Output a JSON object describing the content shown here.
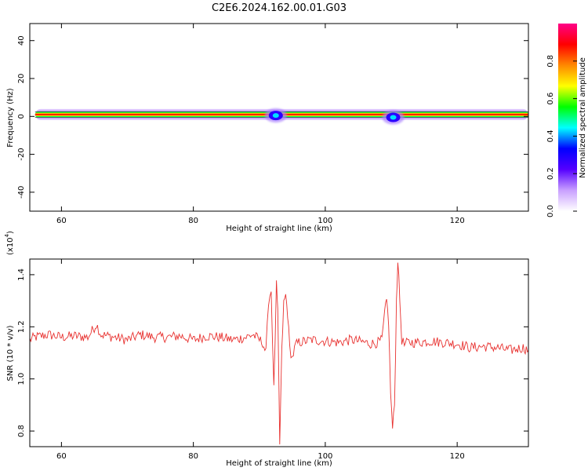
{
  "title": "C2E6.2024.162.00.01.G03",
  "chart_data": [
    {
      "type": "heatmap",
      "xlabel": "Height of straight line (km)",
      "ylabel": "Frequency (Hz)",
      "xlim": [
        55.2,
        130.8
      ],
      "ylim": [
        -50,
        49
      ],
      "x_ticks": [
        "60",
        "80",
        "100",
        "120"
      ],
      "y_ticks": [
        "40",
        "20",
        "0",
        "-20",
        "-40"
      ],
      "x_tick_values": [
        60,
        80,
        100,
        120
      ],
      "y_tick_values": [
        40,
        20,
        0,
        -20,
        -40
      ],
      "band_range_km": [
        56,
        130.8
      ],
      "band_center_hz": 1,
      "features": [
        {
          "x": 92.5,
          "y": 0.5,
          "amplitude": 0.2
        },
        {
          "x": 110.3,
          "y": -0.5,
          "amplitude": 0.15
        }
      ],
      "colorbar": {
        "label": "Normalized spectral amplitude",
        "ticks": [
          "0.0",
          "0.2",
          "0.4",
          "0.6",
          "0.8"
        ],
        "tick_values": [
          0,
          0.2,
          0.4,
          0.6,
          0.8
        ],
        "range": [
          0,
          1
        ],
        "colors": [
          "#ffffff",
          "#c9a0ff",
          "#5500ff",
          "#0000ff",
          "#00ffff",
          "#00ff00",
          "#ffff00",
          "#ff8800",
          "#ff0000",
          "#ff0088"
        ]
      },
      "grid": false
    },
    {
      "type": "line",
      "xlabel": "Height of straight line (km)",
      "ylabel": "SNR (10 * v/v)",
      "y_multiplier": "(x10",
      "y_multiplier_exp": "4",
      "y_multiplier_close": ")",
      "xlim": [
        55.2,
        130.8
      ],
      "ylim": [
        0.74,
        1.46
      ],
      "x_ticks": [
        "60",
        "80",
        "100",
        "120"
      ],
      "y_ticks": [
        "1.4",
        "1.2",
        "1.0",
        "0.8"
      ],
      "x_tick_values": [
        60,
        80,
        100,
        120
      ],
      "y_tick_values": [
        1.4,
        1.2,
        1.0,
        0.8
      ],
      "color": "#e8312f",
      "series": [
        {
          "x": [
            55.2,
            56,
            58,
            60,
            62,
            64,
            65.3,
            66,
            68,
            70,
            72,
            74,
            76,
            78,
            80,
            82,
            84,
            86,
            88,
            89,
            90,
            90.5,
            91,
            91.4,
            91.8,
            92.2,
            92.6,
            92.8,
            93.1,
            93.4,
            93.7,
            94,
            94.3,
            94.6,
            95,
            95.5,
            96,
            98,
            100,
            102,
            104,
            106,
            107,
            108,
            108.6,
            109,
            109.3,
            109.6,
            109.9,
            110.2,
            110.5,
            110.8,
            111,
            111.3,
            111.6,
            112,
            112.5,
            114,
            116,
            118,
            120,
            122,
            124,
            126,
            128,
            130,
            130.8
          ],
          "y": [
            1.15,
            1.16,
            1.17,
            1.16,
            1.165,
            1.16,
            1.21,
            1.17,
            1.16,
            1.15,
            1.17,
            1.16,
            1.16,
            1.165,
            1.15,
            1.165,
            1.16,
            1.15,
            1.16,
            1.17,
            1.15,
            1.14,
            1.1,
            1.3,
            1.34,
            0.96,
            1.36,
            1.25,
            0.75,
            1.1,
            1.29,
            1.32,
            1.25,
            1.12,
            1.08,
            1.13,
            1.14,
            1.15,
            1.145,
            1.14,
            1.15,
            1.14,
            1.135,
            1.14,
            1.15,
            1.25,
            1.3,
            1.22,
            0.95,
            0.81,
            0.9,
            1.3,
            1.46,
            1.3,
            1.15,
            1.13,
            1.14,
            1.14,
            1.145,
            1.14,
            1.135,
            1.12,
            1.125,
            1.12,
            1.11,
            1.12,
            1.11
          ]
        }
      ],
      "grid": false
    }
  ]
}
